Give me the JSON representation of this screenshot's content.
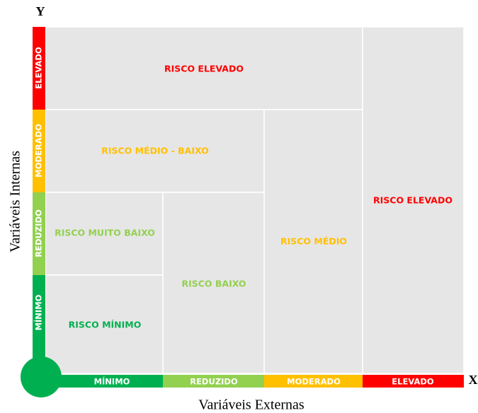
{
  "axes": {
    "y_letter": "Y",
    "x_letter": "X",
    "y_title": "Variáveis Internas",
    "x_title": "Variáveis Externas"
  },
  "y_levels": [
    "ELEVADO",
    "MODERADO",
    "REDUZIDO",
    "MÍNIMO"
  ],
  "x_levels": [
    "MÍNIMO",
    "REDUZIDO",
    "MODERADO",
    "ELEVADO"
  ],
  "cells": [
    "RISCO ELEVADO",
    "RISCO ELEVADO",
    "RISCO MÉDIO - BAIXO",
    "RISCO MÉDIO",
    "RISCO MUITO BAIXO",
    "RISCO BAIXO",
    "RISCO MÍNIMO"
  ]
}
